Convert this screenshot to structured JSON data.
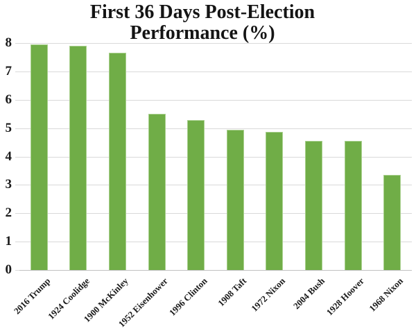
{
  "title": {
    "line1": "First 36 Days Post-Election",
    "line2": "Performance (%)"
  },
  "chart_data": {
    "type": "bar",
    "title": "First 36 Days Post-Election Performance (%)",
    "categories": [
      "2016 Trump",
      "1924 Coolidge",
      "1900 McKinley",
      "1952 Eisenhower",
      "1996 Clinton",
      "1908 Taft",
      "1972 Nixon",
      "2004 Bush",
      "1928 Hoover",
      "1968 Nixon"
    ],
    "values": [
      7.95,
      7.9,
      7.65,
      5.5,
      5.28,
      4.93,
      4.88,
      4.56,
      4.54,
      3.35
    ],
    "xlabel": "",
    "ylabel": "",
    "ylim": [
      0,
      8
    ],
    "yticks": [
      0,
      1,
      2,
      3,
      4,
      5,
      6,
      7,
      8
    ],
    "ytick_labels": [
      "0",
      "1",
      "2",
      "3",
      "4",
      "5",
      "6",
      "7",
      "8"
    ],
    "grid": true,
    "legend": false,
    "bar_color": "#70ad47",
    "bar_edge_color": "#a9d08e",
    "gridline_color": "#d9d9d9",
    "axis_line_color": "#c0c0c0",
    "text_color": "#1a1a1a",
    "background_color": "#ffffff"
  }
}
